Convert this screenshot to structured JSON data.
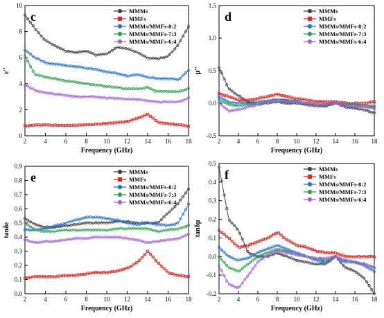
{
  "legend_entries": [
    "MMMs",
    "MMFs",
    "MMMs/MMFs-8:2",
    "MMMs/MMFs-7:3",
    "MMMs/MMFs-6:4"
  ],
  "series_colors": [
    "#404040",
    "#e8231f",
    "#1f6fe0",
    "#27a34a",
    "#a060e0"
  ],
  "chart_data": [
    {
      "type": "line",
      "panel": "c",
      "xlabel": "Frequency (GHz)",
      "ylabel": "ε''",
      "xlim": [
        2,
        18
      ],
      "ylim": [
        0,
        10
      ],
      "xticks": [
        "2",
        "4",
        "6",
        "8",
        "10",
        "12",
        "14",
        "16",
        "18"
      ],
      "yticks": [
        "0",
        "2",
        "4",
        "6",
        "8",
        "10"
      ],
      "legend_position": "top-right",
      "x": [
        2,
        3,
        4,
        5,
        6,
        7,
        8,
        9,
        10,
        11,
        12,
        13,
        14,
        15,
        16,
        17,
        18
      ],
      "series": [
        {
          "name": "MMMs",
          "values": [
            9.3,
            8.2,
            7.3,
            6.9,
            6.5,
            6.4,
            6.5,
            6.2,
            6.3,
            6.8,
            6.7,
            6.4,
            6.0,
            5.9,
            6.1,
            7.0,
            8.4
          ]
        },
        {
          "name": "MMFs",
          "values": [
            0.75,
            0.8,
            0.85,
            0.8,
            0.8,
            0.8,
            0.85,
            0.9,
            0.95,
            1.0,
            1.1,
            1.35,
            1.65,
            1.05,
            0.95,
            0.85,
            0.75
          ]
        },
        {
          "name": "MMMs/MMFs-8:2",
          "values": [
            6.6,
            6.0,
            5.6,
            5.5,
            5.4,
            5.3,
            5.2,
            5.1,
            4.9,
            4.8,
            4.6,
            4.7,
            4.5,
            4.4,
            4.4,
            4.3,
            5.0
          ]
        },
        {
          "name": "MMMs/MMFs-7:3",
          "values": [
            6.1,
            4.7,
            4.5,
            4.4,
            4.2,
            4.1,
            4.0,
            3.9,
            3.8,
            3.7,
            3.6,
            3.6,
            3.7,
            3.4,
            3.4,
            3.4,
            3.6
          ]
        },
        {
          "name": "MMMs/MMFs-6:4",
          "values": [
            3.9,
            3.5,
            3.3,
            3.2,
            3.1,
            3.0,
            3.0,
            3.0,
            2.9,
            2.9,
            2.8,
            2.8,
            2.7,
            2.6,
            2.6,
            2.6,
            2.9
          ]
        }
      ]
    },
    {
      "type": "line",
      "panel": "d",
      "xlabel": "Frequency (GHz)",
      "ylabel": "μ''",
      "xlim": [
        2,
        18
      ],
      "ylim": [
        -0.5,
        1.5
      ],
      "xticks": [
        "2",
        "4",
        "6",
        "8",
        "10",
        "12",
        "14",
        "16",
        "18"
      ],
      "yticks": [
        "-0.5",
        "0.0",
        "0.5",
        "1.0",
        "1.5"
      ],
      "legend_position": "top-right",
      "x": [
        2,
        3,
        4,
        5,
        6,
        7,
        8,
        9,
        10,
        11,
        12,
        13,
        14,
        15,
        16,
        17,
        18
      ],
      "series": [
        {
          "name": "MMMs",
          "values": [
            0.55,
            0.22,
            0.12,
            0.02,
            -0.02,
            0.0,
            0.02,
            0.0,
            0.0,
            -0.02,
            -0.04,
            -0.05,
            0.0,
            -0.06,
            -0.08,
            -0.1,
            -0.15
          ]
        },
        {
          "name": "MMFs",
          "values": [
            0.15,
            0.1,
            0.05,
            0.05,
            0.07,
            0.1,
            0.14,
            0.1,
            0.07,
            0.05,
            0.03,
            0.02,
            0.02,
            0.0,
            0.0,
            0.0,
            0.02
          ]
        },
        {
          "name": "MMMs/MMFs-8:2",
          "values": [
            0.1,
            0.02,
            0.0,
            0.0,
            0.02,
            0.04,
            0.06,
            0.05,
            0.03,
            0.0,
            -0.02,
            -0.03,
            0.0,
            -0.02,
            -0.02,
            -0.04,
            -0.05
          ]
        },
        {
          "name": "MMMs/MMFs-7:3",
          "values": [
            0.05,
            -0.02,
            -0.04,
            -0.02,
            0.0,
            0.03,
            0.05,
            0.04,
            0.02,
            0.0,
            -0.02,
            -0.02,
            0.0,
            -0.02,
            -0.03,
            -0.04,
            -0.06
          ]
        },
        {
          "name": "MMMs/MMFs-6:4",
          "values": [
            0.0,
            -0.12,
            -0.1,
            -0.06,
            -0.02,
            0.02,
            0.04,
            0.03,
            0.02,
            0.0,
            -0.02,
            -0.02,
            0.0,
            -0.03,
            -0.05,
            -0.06,
            -0.08
          ]
        }
      ]
    },
    {
      "type": "line",
      "panel": "e",
      "xlabel": "Frequency (GHz)",
      "ylabel": "tanδε",
      "xlim": [
        2,
        18
      ],
      "ylim": [
        0,
        0.9
      ],
      "xticks": [
        "2",
        "4",
        "6",
        "8",
        "10",
        "12",
        "14",
        "16",
        "18"
      ],
      "yticks": [
        "0.0",
        "0.1",
        "0.2",
        "0.3",
        "0.4",
        "0.5",
        "0.6",
        "0.7",
        "0.8",
        "0.9"
      ],
      "legend_position": "top-right",
      "x": [
        2,
        3,
        4,
        5,
        6,
        7,
        8,
        9,
        10,
        11,
        12,
        13,
        14,
        15,
        16,
        17,
        18
      ],
      "series": [
        {
          "name": "MMMs",
          "values": [
            0.53,
            0.49,
            0.47,
            0.47,
            0.48,
            0.49,
            0.5,
            0.5,
            0.5,
            0.51,
            0.51,
            0.5,
            0.5,
            0.5,
            0.57,
            0.64,
            0.74
          ]
        },
        {
          "name": "MMFs",
          "values": [
            0.11,
            0.12,
            0.12,
            0.12,
            0.13,
            0.13,
            0.14,
            0.15,
            0.15,
            0.16,
            0.18,
            0.22,
            0.3,
            0.22,
            0.15,
            0.13,
            0.12
          ]
        },
        {
          "name": "MMMs/MMFs-8:2",
          "values": [
            0.45,
            0.45,
            0.46,
            0.48,
            0.5,
            0.52,
            0.54,
            0.54,
            0.53,
            0.52,
            0.5,
            0.49,
            0.5,
            0.49,
            0.48,
            0.5,
            0.63
          ]
        },
        {
          "name": "MMMs/MMFs-7:3",
          "values": [
            0.5,
            0.45,
            0.44,
            0.44,
            0.45,
            0.45,
            0.45,
            0.45,
            0.45,
            0.46,
            0.46,
            0.46,
            0.46,
            0.44,
            0.45,
            0.46,
            0.48
          ]
        },
        {
          "name": "MMMs/MMFs-6:4",
          "values": [
            0.38,
            0.36,
            0.37,
            0.37,
            0.38,
            0.39,
            0.39,
            0.4,
            0.4,
            0.4,
            0.39,
            0.38,
            0.36,
            0.37,
            0.38,
            0.39,
            0.42
          ]
        }
      ]
    },
    {
      "type": "line",
      "panel": "f",
      "xlabel": "Frequency (GHz)",
      "ylabel": "tanδμ",
      "xlim": [
        2,
        18
      ],
      "ylim": [
        -0.2,
        0.5
      ],
      "xticks": [
        "2",
        "4",
        "6",
        "8",
        "10",
        "12",
        "14",
        "16",
        "18"
      ],
      "yticks": [
        "-0.2",
        "-0.1",
        "0.0",
        "0.1",
        "0.2",
        "0.3",
        "0.4",
        "0.5"
      ],
      "legend_position": "top-right",
      "x": [
        2,
        3,
        4,
        5,
        6,
        7,
        8,
        9,
        10,
        11,
        12,
        13,
        14,
        15,
        16,
        17,
        18
      ],
      "series": [
        {
          "name": "MMMs",
          "values": [
            0.48,
            0.2,
            0.14,
            0.02,
            0.0,
            0.0,
            0.02,
            0.0,
            -0.02,
            -0.03,
            -0.04,
            -0.04,
            0.0,
            -0.06,
            -0.08,
            -0.12,
            -0.2
          ]
        },
        {
          "name": "MMFs",
          "values": [
            0.14,
            0.1,
            0.05,
            0.06,
            0.08,
            0.1,
            0.13,
            0.09,
            0.06,
            0.05,
            0.03,
            0.02,
            0.02,
            0.0,
            0.0,
            0.0,
            0.0
          ]
        },
        {
          "name": "MMMs/MMFs-8:2",
          "values": [
            0.05,
            0.0,
            -0.02,
            -0.01,
            0.02,
            0.04,
            0.06,
            0.04,
            0.02,
            0.0,
            -0.02,
            -0.03,
            0.0,
            -0.03,
            -0.03,
            -0.05,
            -0.08
          ]
        },
        {
          "name": "MMMs/MMFs-7:3",
          "values": [
            0.0,
            -0.06,
            -0.08,
            -0.04,
            0.0,
            0.02,
            0.04,
            0.03,
            0.01,
            0.0,
            -0.01,
            -0.02,
            0.0,
            -0.02,
            -0.03,
            -0.04,
            -0.06
          ]
        },
        {
          "name": "MMMs/MMFs-6:4",
          "values": [
            -0.05,
            -0.15,
            -0.17,
            -0.1,
            -0.03,
            0.01,
            0.03,
            0.02,
            0.01,
            0.0,
            -0.01,
            -0.01,
            0.0,
            -0.02,
            -0.03,
            -0.04,
            -0.06
          ]
        }
      ]
    }
  ]
}
